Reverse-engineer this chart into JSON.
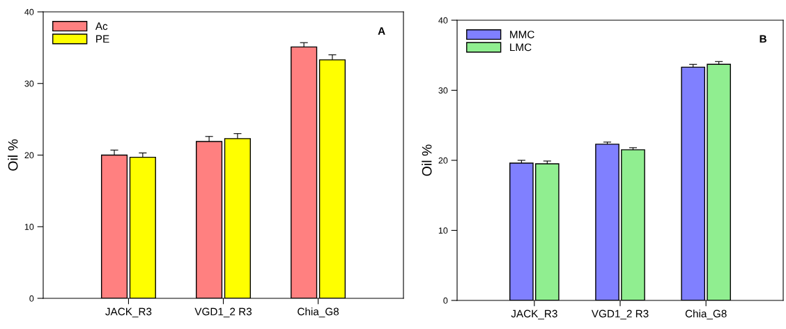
{
  "chart_data": [
    {
      "type": "bar",
      "ylabel": "Oil %",
      "categories": [
        "JACK_R3",
        "VGD1_2 R3",
        "Chia_G8"
      ],
      "ylim": [
        0,
        40
      ],
      "yticks": [
        0,
        10,
        20,
        30,
        40
      ],
      "grid": false,
      "legend": "top left",
      "annotations": [
        "A"
      ],
      "series": [
        {
          "name": "Ac",
          "color": "#ff8080",
          "values": [
            20.0,
            21.9,
            35.1
          ],
          "errors": [
            0.7,
            0.7,
            0.6
          ]
        },
        {
          "name": "PE",
          "color": "#ffff00",
          "values": [
            19.7,
            22.3,
            33.3
          ],
          "errors": [
            0.6,
            0.7,
            0.7
          ]
        }
      ]
    },
    {
      "type": "bar",
      "ylabel": "Oil %",
      "categories": [
        "JACK_R3",
        "VGD1_2 R3",
        "Chia_G8"
      ],
      "ylim": [
        0,
        40
      ],
      "yticks": [
        0,
        10,
        20,
        30,
        40
      ],
      "grid": false,
      "legend": "top left",
      "annotations": [
        "B"
      ],
      "series": [
        {
          "name": "MMC",
          "color": "#8080ff",
          "values": [
            19.6,
            22.3,
            33.3
          ],
          "errors": [
            0.4,
            0.3,
            0.4
          ]
        },
        {
          "name": "LMC",
          "color": "#90ee90",
          "values": [
            19.5,
            21.5,
            33.7
          ],
          "errors": [
            0.4,
            0.3,
            0.4
          ]
        }
      ]
    }
  ]
}
